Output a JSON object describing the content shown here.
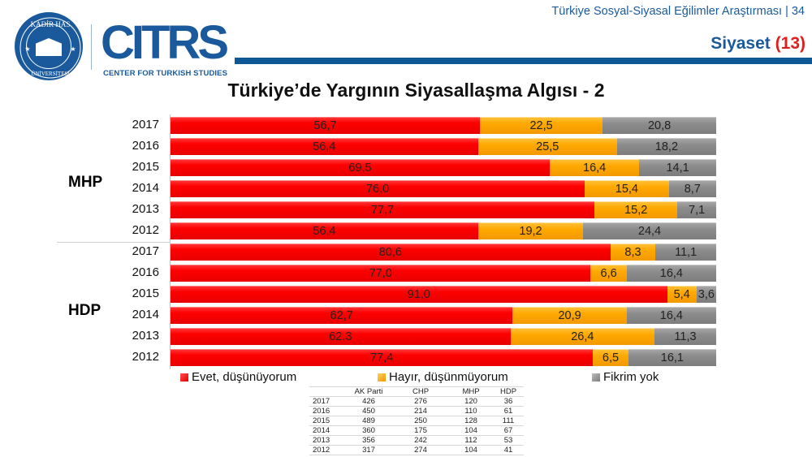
{
  "header": {
    "seal_text": "KADİR HAS ÜNİVERSİTESİ",
    "seal_year": "1997",
    "brand": "CITRS",
    "brand_subtitle": "CENTER FOR TURKISH STUDIES",
    "report_title": "Türkiye Sosyal-Siyasal Eğilimler Araştırması | 34",
    "section": "Siyaset",
    "section_num": "(13)"
  },
  "colors": {
    "brand_blue": "#1a5a9c",
    "evet": "#ff0000",
    "hayir": "#ffa800",
    "fikrim_yok": "#8c8c8c",
    "accent_red": "#e11d1d"
  },
  "chart_data": {
    "type": "bar",
    "orientation": "horizontal-stacked-100",
    "title": "Türkiye’de Yargının Siyasallaşma Algısı - 2",
    "xlabel": "",
    "ylabel": "",
    "xlim": [
      0,
      100
    ],
    "legend_position": "bottom",
    "series_names": [
      "Evet, düşünüyorum",
      "Hayır, düşünmüyorum",
      "Fikrim yok"
    ],
    "groups": [
      {
        "name": "MHP",
        "rows": [
          {
            "year": "2017",
            "values": [
              56.7,
              22.5,
              20.8
            ],
            "labels": [
              "56,7",
              "22,5",
              "20,8"
            ]
          },
          {
            "year": "2016",
            "values": [
              56.4,
              25.5,
              18.2
            ],
            "labels": [
              "56,4",
              "25,5",
              "18,2"
            ]
          },
          {
            "year": "2015",
            "values": [
              69.5,
              16.4,
              14.1
            ],
            "labels": [
              "69,5",
              "16,4",
              "14,1"
            ]
          },
          {
            "year": "2014",
            "values": [
              76.0,
              15.4,
              8.7
            ],
            "labels": [
              "76,0",
              "15,4",
              "8,7"
            ]
          },
          {
            "year": "2013",
            "values": [
              77.7,
              15.2,
              7.1
            ],
            "labels": [
              "77,7",
              "15,2",
              "7,1"
            ]
          },
          {
            "year": "2012",
            "values": [
              56.4,
              19.2,
              24.4
            ],
            "labels": [
              "56,4",
              "19,2",
              "24,4"
            ]
          }
        ]
      },
      {
        "name": "HDP",
        "rows": [
          {
            "year": "2017",
            "values": [
              80.6,
              8.3,
              11.1
            ],
            "labels": [
              "80,6",
              "8,3",
              "11,1"
            ]
          },
          {
            "year": "2016",
            "values": [
              77.0,
              6.6,
              16.4
            ],
            "labels": [
              "77,0",
              "6,6",
              "16,4"
            ]
          },
          {
            "year": "2015",
            "values": [
              91.0,
              5.4,
              3.6
            ],
            "labels": [
              "91,0",
              "5,4",
              "3,6"
            ]
          },
          {
            "year": "2014",
            "values": [
              62.7,
              20.9,
              16.4
            ],
            "labels": [
              "62,7",
              "20,9",
              "16,4"
            ]
          },
          {
            "year": "2013",
            "values": [
              62.3,
              26.4,
              11.3
            ],
            "labels": [
              "62,3",
              "26,4",
              "11,3"
            ]
          },
          {
            "year": "2012",
            "values": [
              77.4,
              6.5,
              16.1
            ],
            "labels": [
              "77,4",
              "6,5",
              "16,1"
            ]
          }
        ]
      }
    ]
  },
  "legend": [
    {
      "label": "Evet, düşünüyorum",
      "color": "red"
    },
    {
      "label": "Hayır, düşünmüyorum",
      "color": "orange"
    },
    {
      "label": "Fikrim yok",
      "color": "gray"
    }
  ],
  "sample_table": {
    "headers": [
      "",
      "AK Parti",
      "CHP",
      "MHP",
      "HDP"
    ],
    "rows": [
      [
        "2017",
        "426",
        "276",
        "120",
        "36"
      ],
      [
        "2016",
        "450",
        "214",
        "110",
        "61"
      ],
      [
        "2015",
        "489",
        "250",
        "128",
        "111"
      ],
      [
        "2014",
        "360",
        "175",
        "104",
        "67"
      ],
      [
        "2013",
        "356",
        "242",
        "112",
        "53"
      ],
      [
        "2012",
        "317",
        "274",
        "104",
        "41"
      ]
    ]
  }
}
